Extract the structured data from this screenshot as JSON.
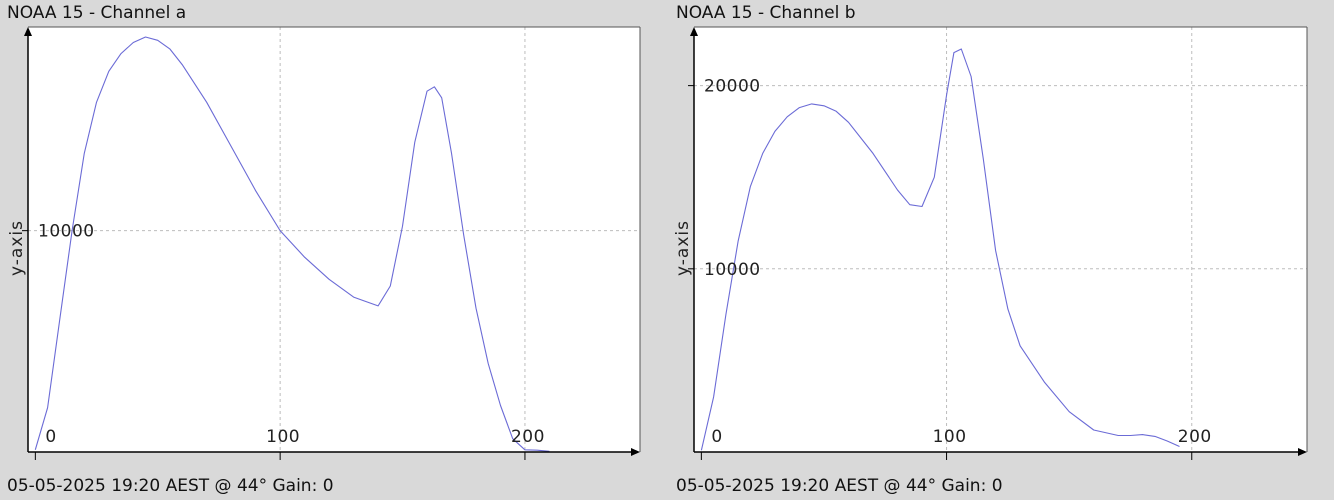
{
  "chart_data": [
    {
      "type": "line",
      "title": "NOAA 15 - Channel a",
      "footer": "05-05-2025 19:20 AEST @ 44° Gain: 0",
      "xlabel": "",
      "ylabel": "y-axis",
      "xlim": [
        -3,
        247
      ],
      "ylim": [
        0,
        19200
      ],
      "x_ticks": [
        0,
        100,
        200
      ],
      "x_tick_labels": [
        "0",
        "100",
        "200"
      ],
      "y_ticks": [
        10000
      ],
      "y_tick_labels": [
        "10000"
      ],
      "grid": true,
      "line_color": "#6b6bd6",
      "x": [
        0,
        5,
        10,
        15,
        20,
        25,
        30,
        35,
        40,
        45,
        50,
        55,
        60,
        70,
        80,
        90,
        100,
        110,
        120,
        130,
        135,
        140,
        145,
        150,
        155,
        160,
        163,
        166,
        170,
        175,
        180,
        185,
        190,
        195,
        200,
        205,
        210
      ],
      "values": [
        100,
        2000,
        6000,
        10000,
        13500,
        15800,
        17200,
        18000,
        18500,
        18750,
        18600,
        18200,
        17500,
        15800,
        13800,
        11800,
        10000,
        8800,
        7800,
        7000,
        6800,
        6600,
        7500,
        10200,
        14000,
        16300,
        16500,
        16000,
        13500,
        9800,
        6500,
        4000,
        2100,
        600,
        100,
        80,
        30
      ]
    },
    {
      "type": "line",
      "title": "NOAA 15 - Channel b",
      "footer": "05-05-2025 19:20 AEST @ 44° Gain: 0",
      "xlabel": "",
      "ylabel": "y-axis",
      "xlim": [
        -3,
        247
      ],
      "ylim": [
        0,
        23200
      ],
      "x_ticks": [
        0,
        100,
        200
      ],
      "x_tick_labels": [
        "0",
        "100",
        "200"
      ],
      "y_ticks": [
        10000,
        20000
      ],
      "y_tick_labels": [
        "10000",
        "20000"
      ],
      "grid": true,
      "line_color": "#6b6bd6",
      "x": [
        0,
        5,
        10,
        15,
        20,
        25,
        30,
        35,
        40,
        45,
        50,
        55,
        60,
        70,
        80,
        85,
        90,
        95,
        100,
        103,
        106,
        110,
        115,
        120,
        125,
        130,
        140,
        150,
        160,
        170,
        175,
        180,
        185,
        190,
        195
      ],
      "values": [
        100,
        3000,
        7500,
        11500,
        14500,
        16300,
        17500,
        18300,
        18800,
        19000,
        18900,
        18600,
        18000,
        16300,
        14300,
        13500,
        13400,
        15000,
        19500,
        21800,
        22000,
        20500,
        16000,
        11000,
        7800,
        5800,
        3800,
        2200,
        1200,
        900,
        900,
        950,
        850,
        600,
        300
      ]
    }
  ]
}
